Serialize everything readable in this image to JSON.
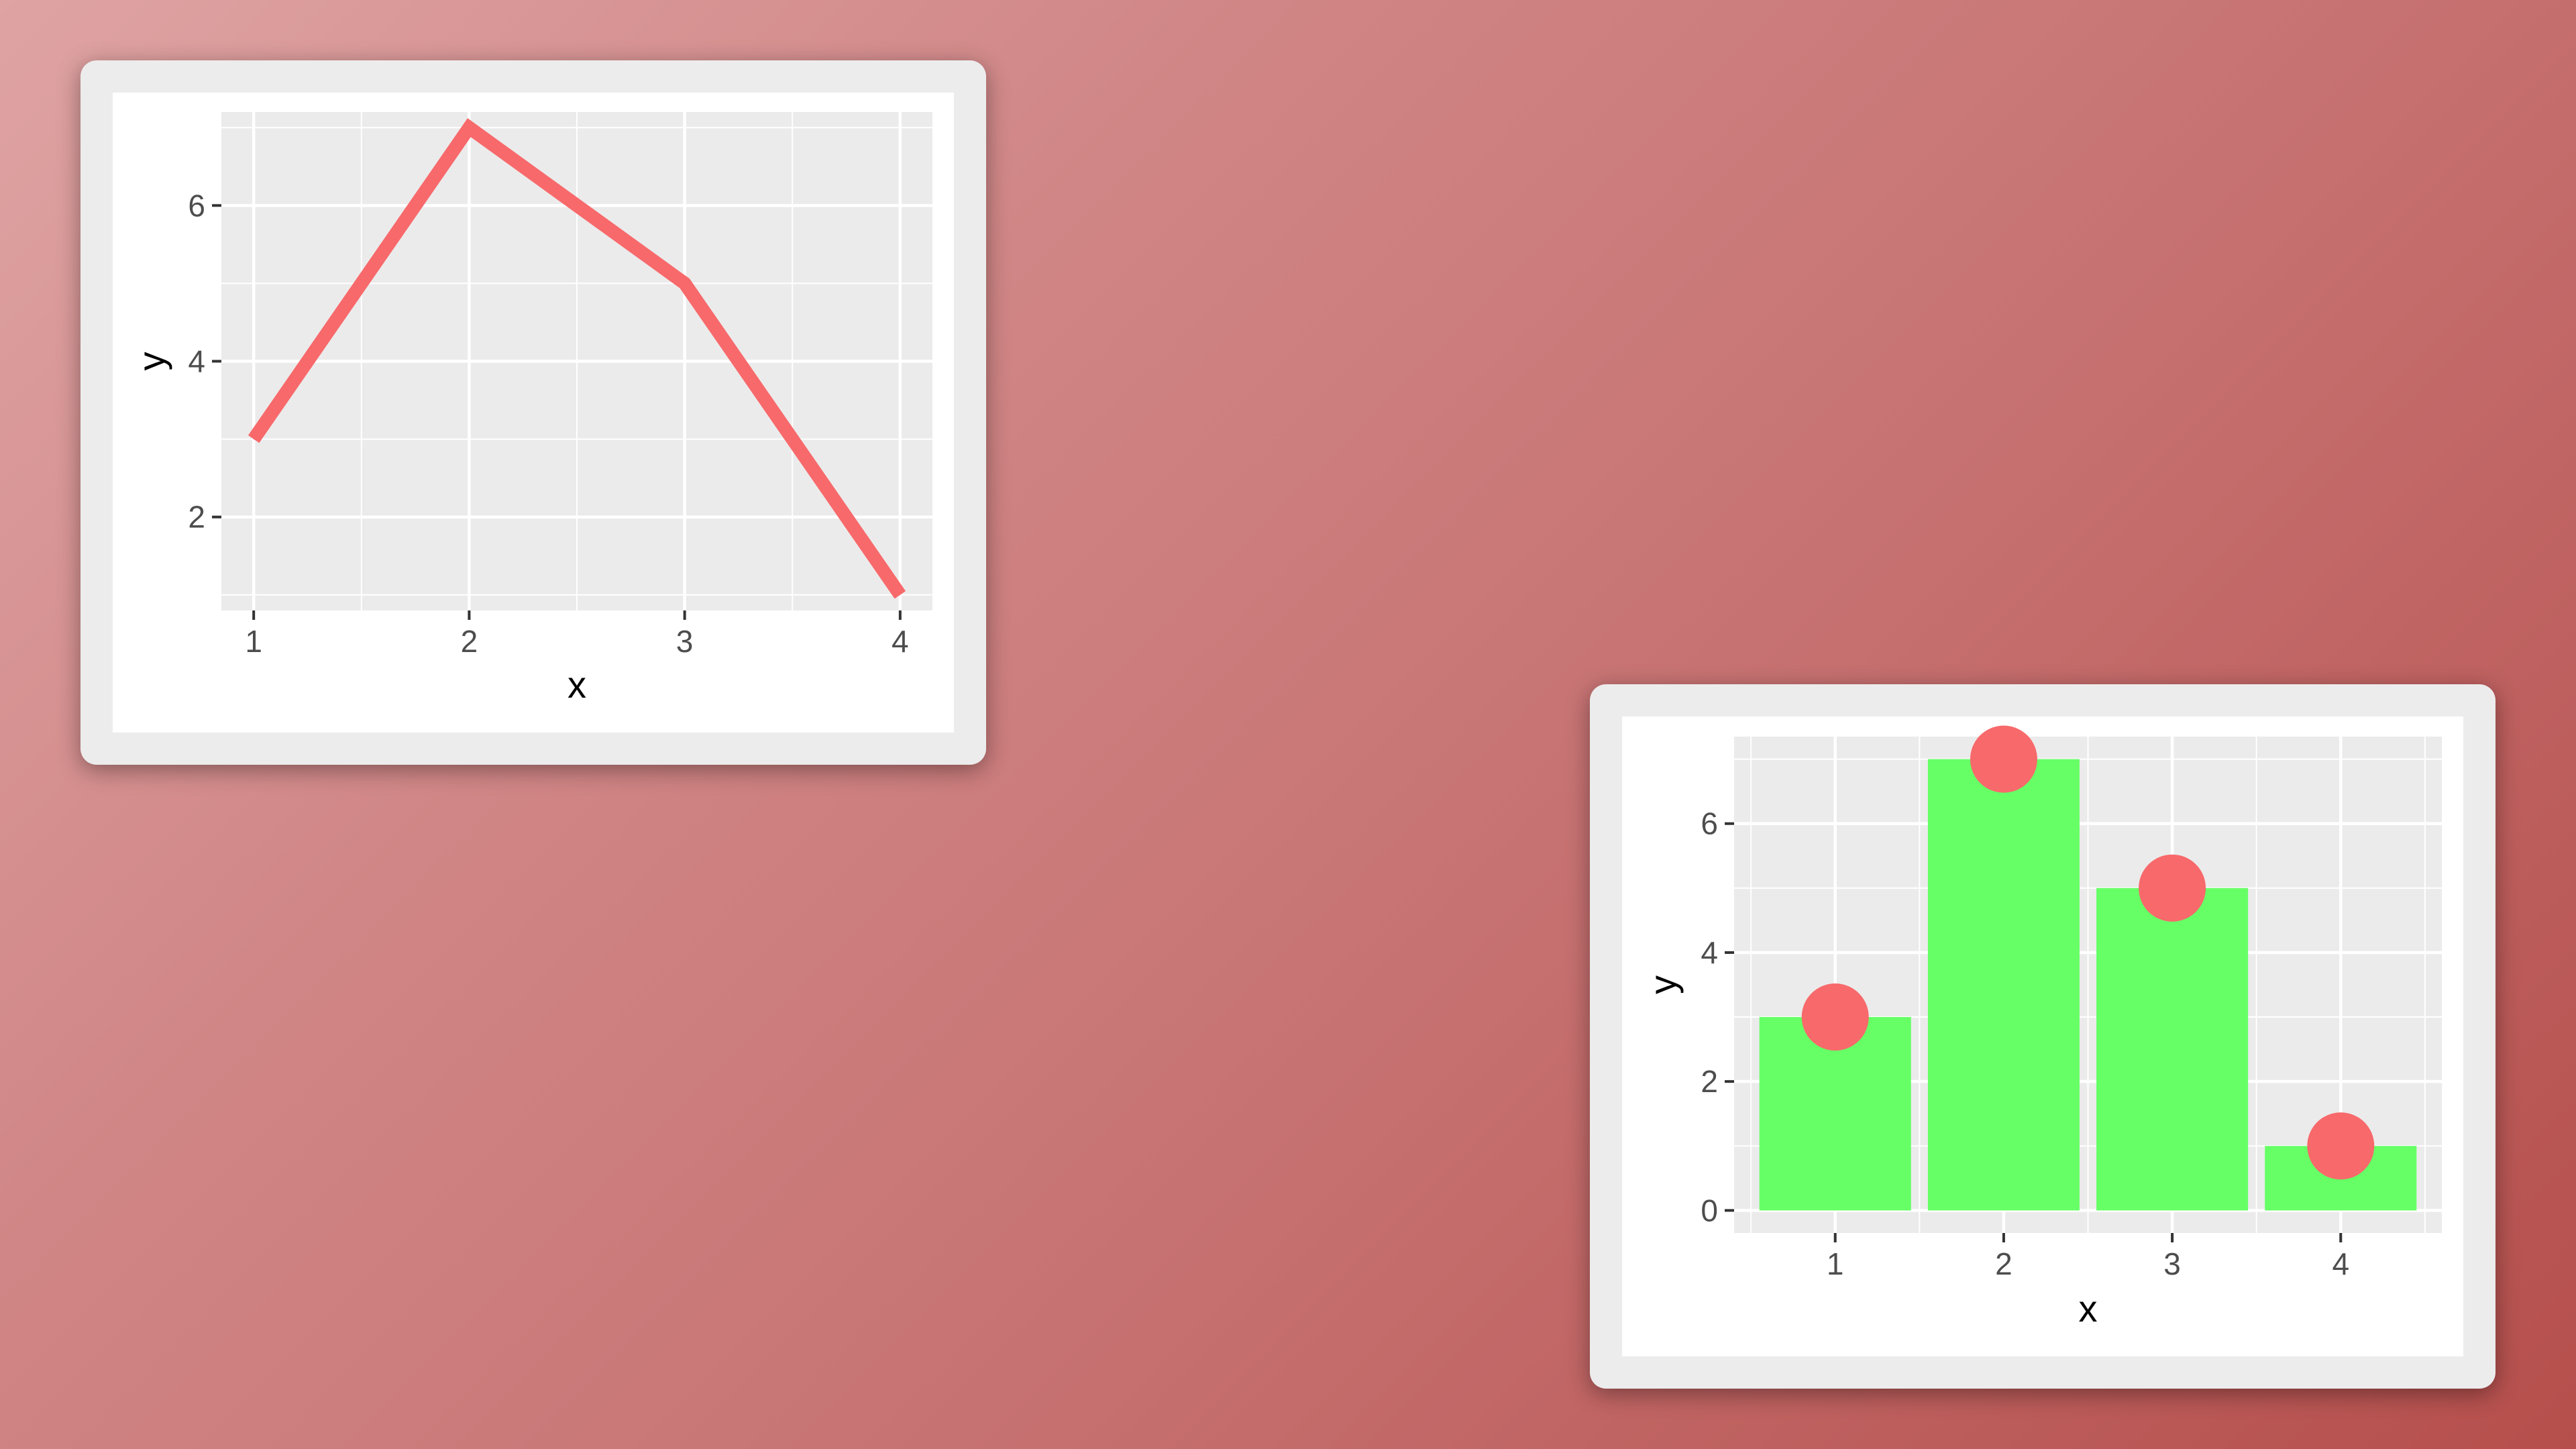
{
  "chart_data": [
    {
      "type": "line",
      "x": [
        1,
        2,
        3,
        4
      ],
      "y": [
        3,
        7,
        5,
        1
      ],
      "xlabel": "x",
      "ylabel": "y",
      "xlim": [
        0.85,
        4.15
      ],
      "ylim": [
        0.8,
        7.2
      ],
      "xticks": [
        "1",
        "2",
        "3",
        "4"
      ],
      "yticks": [
        "2",
        "4",
        "6"
      ],
      "grid": true,
      "line_color": "#f8696b",
      "panel_background": "#ebebeb"
    },
    {
      "type": "bar",
      "categories": [
        "1",
        "2",
        "3",
        "4"
      ],
      "values": [
        3,
        7,
        5,
        1
      ],
      "points": [
        3,
        7,
        5,
        1
      ],
      "xlabel": "x",
      "ylabel": "y",
      "ylim": [
        -0.35,
        7.35
      ],
      "yticks": [
        "0",
        "2",
        "4",
        "6"
      ],
      "grid": true,
      "bar_color": "#66ff66",
      "point_color": "#f8696b",
      "panel_background": "#ebebeb"
    }
  ]
}
